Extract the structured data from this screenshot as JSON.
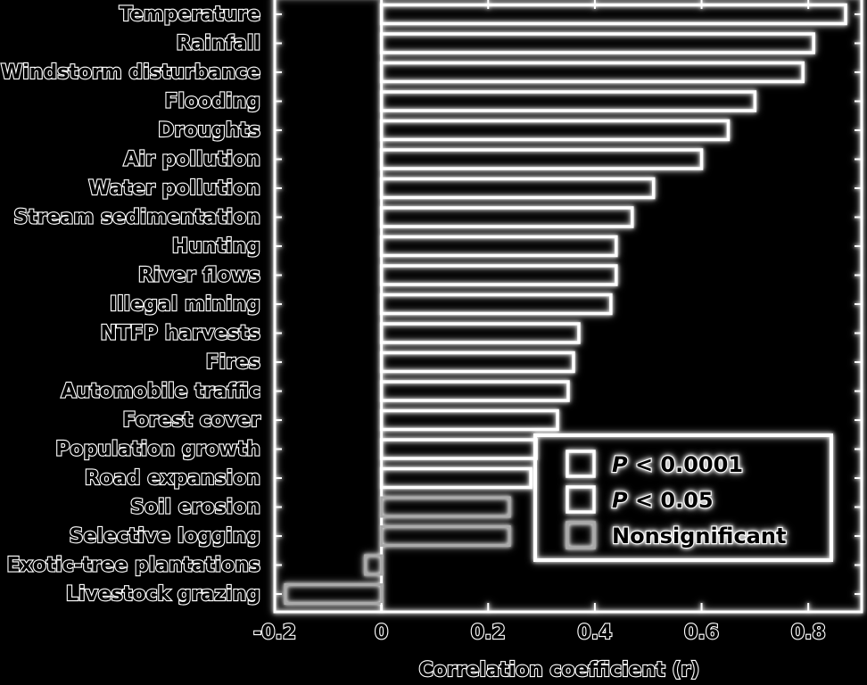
{
  "chart_data": {
    "type": "bar",
    "orientation": "horizontal",
    "xlabel": "Correlation coefficient (r)",
    "ylabel": "",
    "xlim": [
      -0.2,
      0.9
    ],
    "xticks": [
      -0.2,
      0,
      0.2,
      0.4,
      0.6,
      0.8
    ],
    "xtick_labels": [
      "-0.2",
      "0",
      "0.2",
      "0.4",
      "0.6",
      "0.8"
    ],
    "grid": false,
    "categories": [
      "Temperature",
      "Rainfall",
      "Windstorm disturbance",
      "Flooding",
      "Droughts",
      "Air pollution",
      "Water pollution",
      "Stream sedimentation",
      "Hunting",
      "River flows",
      "Illegal mining",
      "NTFP harvests",
      "Fires",
      "Automobile traffic",
      "Forest cover",
      "Population growth",
      "Road expansion",
      "Soil erosion",
      "Selective logging",
      "Exotic-tree plantations",
      "Livestock grazing"
    ],
    "values": [
      0.87,
      0.81,
      0.79,
      0.7,
      0.65,
      0.6,
      0.51,
      0.47,
      0.44,
      0.44,
      0.43,
      0.37,
      0.36,
      0.35,
      0.33,
      0.29,
      0.28,
      0.24,
      0.24,
      -0.03,
      -0.18
    ],
    "significance": [
      "P<0.0001",
      "P<0.0001",
      "P<0.0001",
      "P<0.0001",
      "P<0.0001",
      "P<0.0001",
      "P<0.0001",
      "P<0.0001",
      "P<0.0001",
      "P<0.0001",
      "P<0.0001",
      "P<0.0001",
      "P<0.0001",
      "P<0.0001",
      "P<0.0001",
      "P<0.05",
      "P<0.05",
      "Nonsignificant",
      "Nonsignificant",
      "Nonsignificant",
      "Nonsignificant"
    ],
    "legend": {
      "position": "bottom-right",
      "entries": [
        {
          "key": "P<0.0001",
          "prefix": "P",
          "text": " < 0.0001",
          "color": "#ffffff"
        },
        {
          "key": "P<0.05",
          "prefix": "P",
          "text": " < 0.05",
          "color": "#ffffff"
        },
        {
          "key": "Nonsignificant",
          "prefix": "",
          "text": "Nonsignificant",
          "color": "#aaaaaa"
        }
      ]
    },
    "colors": {
      "background": "#000000",
      "foreground": "#ffffff",
      "nonsignificant": "#aaaaaa"
    }
  }
}
